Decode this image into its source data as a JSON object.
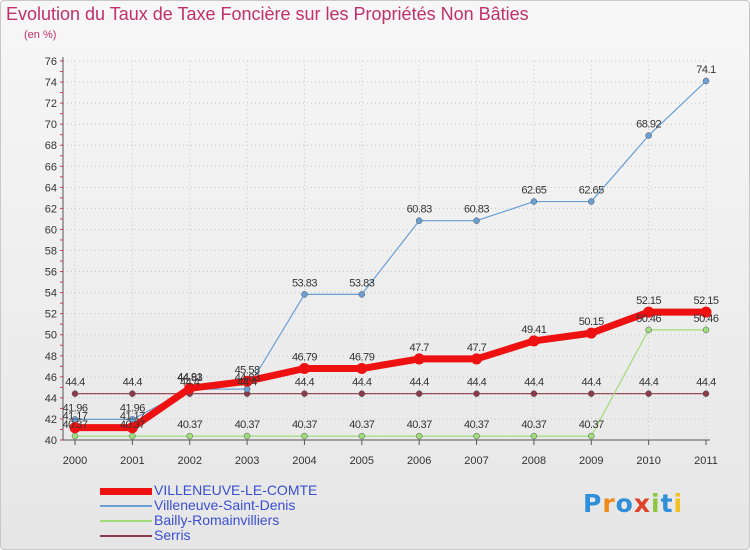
{
  "title": "Evolution du Taux de Taxe Foncière sur les Propriétés Non Bâties",
  "unit": "(en %)",
  "logo": {
    "text": "Proxiti",
    "colors": [
      "#2f8fd8",
      "#f08a1c",
      "#2f8fd8",
      "#e0432a",
      "#8dc63f",
      "#2f8fd8",
      "#f0c020"
    ]
  },
  "colors": {
    "title": "#c0306a",
    "grid": "#c8c8c8",
    "axis": "#555555",
    "labels": "#333333"
  },
  "chart_data": {
    "type": "line",
    "title": "Evolution du Taux de Taxe Foncière sur les Propriétés Non Bâties",
    "xlabel": "",
    "ylabel": "(en %)",
    "ylim": [
      40,
      76
    ],
    "yticks": [
      40,
      42,
      44,
      46,
      48,
      50,
      52,
      54,
      56,
      58,
      60,
      62,
      64,
      66,
      68,
      70,
      72,
      74,
      76
    ],
    "x": [
      "2000",
      "2001",
      "2002",
      "2003",
      "2004",
      "2005",
      "2006",
      "2007",
      "2008",
      "2009",
      "2010",
      "2011"
    ],
    "grid": true,
    "legend_position": "bottom-left",
    "series": [
      {
        "name": "VILLENEUVE-LE-COMTE",
        "color": "#ee1111",
        "width": 7,
        "values": [
          41.17,
          41.17,
          44.91,
          45.58,
          46.79,
          46.79,
          47.7,
          47.7,
          49.41,
          50.15,
          52.15,
          52.15
        ],
        "labels": [
          "41.17",
          "41.17",
          "44.91",
          "45.58",
          "46.79",
          "46.79",
          "47.7",
          "47.7",
          "49.41",
          "50.15",
          "52.15",
          "52.15"
        ]
      },
      {
        "name": "Villeneuve-Saint-Denis",
        "color": "#6a9fd4",
        "width": 1.2,
        "values": [
          41.96,
          41.96,
          44.83,
          44.83,
          53.83,
          53.83,
          60.83,
          60.83,
          62.65,
          62.65,
          68.92,
          74.1
        ],
        "labels": [
          "41.96",
          "41.96",
          "44.83",
          "44.83",
          "53.83",
          "53.83",
          "60.83",
          "60.83",
          "62.65",
          "62.65",
          "68.92",
          "74.1"
        ]
      },
      {
        "name": "Bailly-Romainvilliers",
        "color": "#9fdc7a",
        "width": 1.2,
        "values": [
          40.37,
          40.37,
          40.37,
          40.37,
          40.37,
          40.37,
          40.37,
          40.37,
          40.37,
          40.37,
          50.46,
          50.46
        ],
        "labels": [
          "40.37",
          "40.37",
          "40.37",
          "40.37",
          "40.37",
          "40.37",
          "40.37",
          "40.37",
          "40.37",
          "40.37",
          "50.46",
          "50.46"
        ]
      },
      {
        "name": "Serris",
        "color": "#8b3a4a",
        "width": 1.2,
        "values": [
          44.4,
          44.4,
          44.4,
          44.4,
          44.4,
          44.4,
          44.4,
          44.4,
          44.4,
          44.4,
          44.4,
          44.4
        ],
        "labels": [
          "44.4",
          "44.4",
          "44.4",
          "44.4",
          "44.4",
          "44.4",
          "44.4",
          "44.4",
          "44.4",
          "44.4",
          "44.4",
          "44.4"
        ]
      }
    ]
  }
}
